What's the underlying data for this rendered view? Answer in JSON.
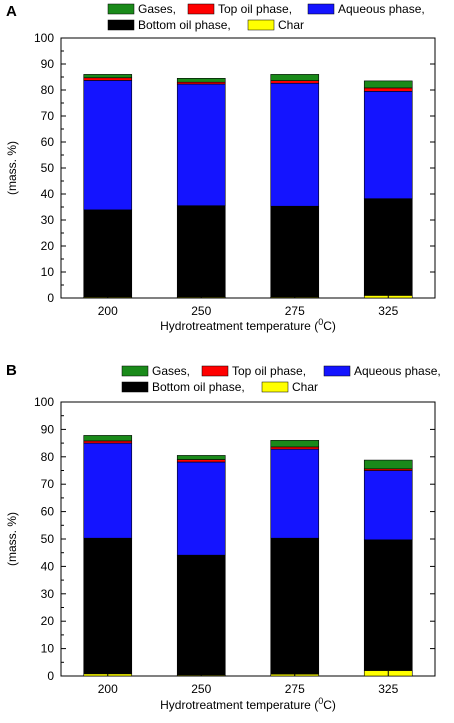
{
  "colors": {
    "Gases": "#1a8a1a",
    "Top oil phase": "#ff0000",
    "Aqueous phase": "#1414ff",
    "Bottom oil phase": "#000000",
    "Char": "#ffff00"
  },
  "chart_data": [
    {
      "panel": "A",
      "type": "bar",
      "stacked": true,
      "categories": [
        "200",
        "250",
        "275",
        "325"
      ],
      "xlabel": "Hydrotreatment temperature (",
      "xlabel_unit_sup": "0",
      "xlabel_unit_rest": "C)",
      "ylabel": "(mass. %)",
      "ylim": [
        0,
        100
      ],
      "yticks": [
        "0",
        "10",
        "20",
        "30",
        "40",
        "50",
        "60",
        "70",
        "80",
        "90",
        "100"
      ],
      "legend": {
        "placement": "top",
        "row1": [
          "Gases,",
          "Top oil phase,",
          "Aqueous phase,"
        ],
        "row2": [
          "Bottom oil phase,",
          "Char"
        ]
      },
      "series": [
        {
          "name": "Char",
          "values": [
            0.3,
            0.3,
            0.3,
            1.0
          ]
        },
        {
          "name": "Bottom oil phase",
          "values": [
            33.6,
            35.2,
            35.0,
            37.2
          ]
        },
        {
          "name": "Aqueous phase",
          "values": [
            49.8,
            46.8,
            47.3,
            41.3
          ]
        },
        {
          "name": "Top oil phase",
          "values": [
            1.0,
            0.7,
            1.0,
            1.3
          ]
        },
        {
          "name": "Gases",
          "values": [
            1.3,
            1.5,
            2.4,
            2.7
          ]
        }
      ]
    },
    {
      "panel": "B",
      "type": "bar",
      "stacked": true,
      "categories": [
        "200",
        "250",
        "275",
        "325"
      ],
      "xlabel": "Hydrotreatment temperature (",
      "xlabel_unit_sup": "0",
      "xlabel_unit_rest": "C)",
      "ylabel": "(mass. %)",
      "ylim": [
        0,
        100
      ],
      "yticks": [
        "0",
        "10",
        "20",
        "30",
        "40",
        "50",
        "60",
        "70",
        "80",
        "90",
        "100"
      ],
      "legend": {
        "placement": "top",
        "row1": [
          "Gases,",
          "Top oil phase,",
          "Aqueous phase,"
        ],
        "row2": [
          "Bottom oil phase,",
          "Char"
        ]
      },
      "series": [
        {
          "name": "Char",
          "values": [
            0.8,
            0.3,
            0.7,
            2.0
          ]
        },
        {
          "name": "Bottom oil phase",
          "values": [
            49.5,
            43.8,
            49.6,
            47.7
          ]
        },
        {
          "name": "Aqueous phase",
          "values": [
            34.7,
            34.0,
            32.5,
            25.3
          ]
        },
        {
          "name": "Top oil phase",
          "values": [
            0.8,
            0.9,
            0.8,
            0.6
          ]
        },
        {
          "name": "Gases",
          "values": [
            2.0,
            1.5,
            2.4,
            3.2
          ]
        }
      ]
    }
  ]
}
